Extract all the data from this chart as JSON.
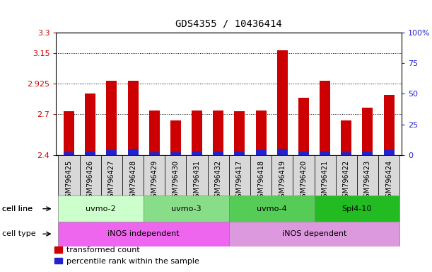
{
  "title": "GDS4355 / 10436414",
  "samples": [
    "GSM796425",
    "GSM796426",
    "GSM796427",
    "GSM796428",
    "GSM796429",
    "GSM796430",
    "GSM796431",
    "GSM796432",
    "GSM796417",
    "GSM796418",
    "GSM796419",
    "GSM796420",
    "GSM796421",
    "GSM796422",
    "GSM796423",
    "GSM796424"
  ],
  "transformed_count": [
    2.72,
    2.85,
    2.945,
    2.945,
    2.73,
    2.655,
    2.73,
    2.73,
    2.72,
    2.73,
    3.17,
    2.82,
    2.945,
    2.655,
    2.75,
    2.84
  ],
  "percentile_rank": [
    2,
    3,
    4,
    5,
    2,
    2,
    3,
    3,
    3,
    4,
    5,
    3,
    3,
    2,
    3,
    4
  ],
  "ymin": 2.4,
  "ymax": 3.3,
  "yticks_left": [
    2.4,
    2.7,
    2.925,
    3.15,
    3.3
  ],
  "yticks_right": [
    0,
    25,
    50,
    75,
    100
  ],
  "cell_lines": [
    {
      "label": "uvmo-2",
      "start": 0,
      "end": 4,
      "color": "#ccffcc"
    },
    {
      "label": "uvmo-3",
      "start": 4,
      "end": 8,
      "color": "#88dd88"
    },
    {
      "label": "uvmo-4",
      "start": 8,
      "end": 12,
      "color": "#55cc55"
    },
    {
      "label": "Spl4-10",
      "start": 12,
      "end": 16,
      "color": "#22bb22"
    }
  ],
  "cell_types": [
    {
      "label": "iNOS independent",
      "start": 0,
      "end": 8,
      "color": "#ee66ee"
    },
    {
      "label": "iNOS dependent",
      "start": 8,
      "end": 16,
      "color": "#dd99dd"
    }
  ],
  "bar_color_red": "#cc0000",
  "bar_color_blue": "#2222cc",
  "bar_width": 0.5,
  "grid_color": "black",
  "left_tick_color": "#cc0000",
  "right_tick_color": "#2222cc",
  "title_fontsize": 10,
  "tick_fontsize": 8,
  "sample_fontsize": 7,
  "label_fontsize": 8,
  "legend_fontsize": 8
}
